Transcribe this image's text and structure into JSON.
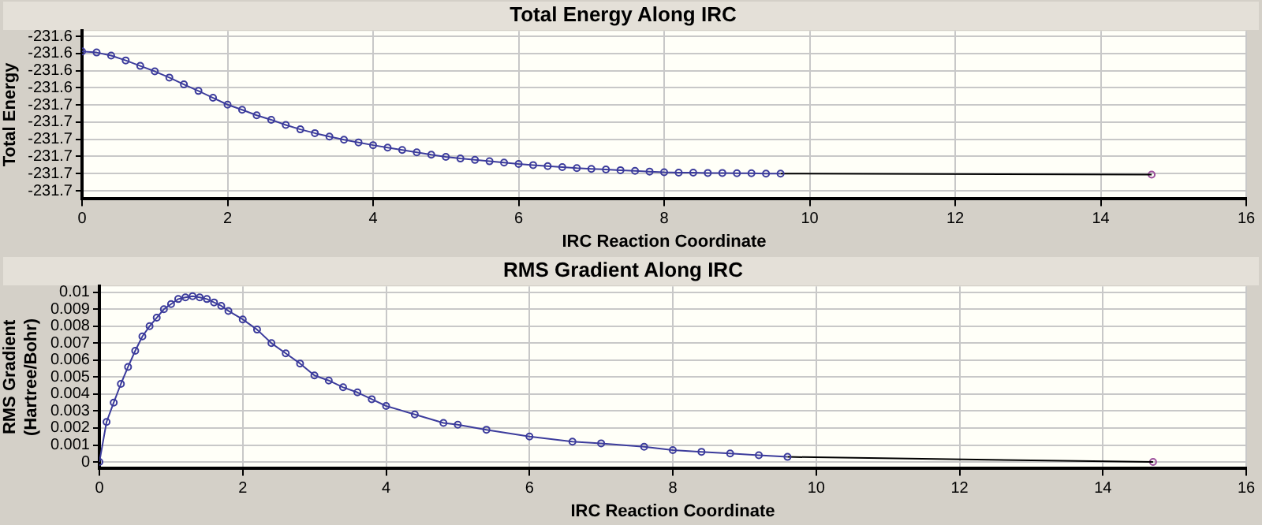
{
  "chart_data": [
    {
      "type": "line",
      "title": "Total Energy Along IRC",
      "xlabel": "IRC Reaction Coordinate",
      "ylabel": "Total Energy",
      "xlim": [
        0,
        16
      ],
      "xticks": [
        0,
        2,
        4,
        6,
        8,
        10,
        12,
        14,
        16
      ],
      "ylim": [
        -231.6772,
        -231.6284
      ],
      "yticks": [
        {
          "value": -231.63,
          "label": "-231.6"
        },
        {
          "value": -231.635,
          "label": "-231.6"
        },
        {
          "value": -231.64,
          "label": "-231.6"
        },
        {
          "value": -231.645,
          "label": "-231.6"
        },
        {
          "value": -231.65,
          "label": "-231.7"
        },
        {
          "value": -231.655,
          "label": "-231.7"
        },
        {
          "value": -231.66,
          "label": "-231.7"
        },
        {
          "value": -231.665,
          "label": "-231.7"
        },
        {
          "value": -231.67,
          "label": "-231.7"
        },
        {
          "value": -231.675,
          "label": "-231.7"
        }
      ],
      "grid": true,
      "legend": false,
      "marker": "circle",
      "series": [
        {
          "color": "#3c3c9c",
          "x": [
            0,
            0.2,
            0.4,
            0.6,
            0.8,
            1,
            1.2,
            1.4,
            1.6,
            1.8,
            2,
            2.2,
            2.4,
            2.6,
            2.8,
            3,
            3.2,
            3.4,
            3.6,
            3.8,
            4,
            4.2,
            4.4,
            4.6,
            4.8,
            5,
            5.2,
            5.4,
            5.6,
            5.8,
            6,
            6.2,
            6.4,
            6.6,
            6.8,
            7,
            7.2,
            7.4,
            7.6,
            7.8,
            8,
            8.2,
            8.4,
            8.6,
            8.8,
            9,
            9.2,
            9.4,
            9.6
          ],
          "values": [
            -231.6344,
            -231.6347,
            -231.6356,
            -231.637,
            -231.6386,
            -231.6402,
            -231.642,
            -231.644,
            -231.6459,
            -231.6479,
            -231.6499,
            -231.6514,
            -231.653,
            -231.6543,
            -231.6558,
            -231.6571,
            -231.6582,
            -231.6592,
            -231.6601,
            -231.6609,
            -231.6617,
            -231.6624,
            -231.6631,
            -231.6638,
            -231.6645,
            -231.6651,
            -231.6656,
            -231.666,
            -231.6664,
            -231.6668,
            -231.6672,
            -231.6675,
            -231.6678,
            -231.6681,
            -231.6684,
            -231.6686,
            -231.6688,
            -231.669,
            -231.6692,
            -231.6694,
            -231.6696,
            -231.6697,
            -231.6697,
            -231.6698,
            -231.6698,
            -231.6699,
            -231.6699,
            -231.67,
            -231.67
          ]
        },
        {
          "color": "#000000",
          "marker": "none",
          "x": [
            9.6,
            14.7
          ],
          "values": [
            -231.67,
            -231.6703
          ]
        },
        {
          "type": "scatter",
          "color": "#9c509c",
          "x": [
            14.7
          ],
          "values": [
            -231.6703
          ]
        }
      ]
    },
    {
      "type": "line",
      "title": "RMS Gradient Along IRC",
      "xlabel": "IRC Reaction Coordinate",
      "ylabel": "RMS Gradient\n(Hartree/Bohr)",
      "xlim": [
        0,
        16
      ],
      "xticks": [
        0,
        2,
        4,
        6,
        8,
        10,
        12,
        14,
        16
      ],
      "ylim": [
        -0.00035,
        0.01035
      ],
      "yticks": [
        0,
        0.001,
        0.002,
        0.003,
        0.004,
        0.005,
        0.006,
        0.007,
        0.008,
        0.009,
        0.01
      ],
      "grid": true,
      "legend": false,
      "marker": "circle",
      "series": [
        {
          "color": "#3c3c9c",
          "x": [
            0,
            0.1,
            0.2,
            0.3,
            0.4,
            0.5,
            0.6,
            0.7,
            0.8,
            0.9,
            1,
            1.1,
            1.2,
            1.3,
            1.4,
            1.5,
            1.6,
            1.7,
            1.8,
            2,
            2.2,
            2.4,
            2.6,
            2.8,
            3,
            3.2,
            3.4,
            3.6,
            3.8,
            4,
            4.4,
            4.8,
            5,
            5.4,
            6,
            6.6,
            7,
            7.6,
            8,
            8.4,
            8.8,
            9.2,
            9.6
          ],
          "values": [
            0,
            0.00236,
            0.0035,
            0.0046,
            0.0056,
            0.00655,
            0.0074,
            0.008,
            0.0085,
            0.009,
            0.0093,
            0.0096,
            0.0097,
            0.00977,
            0.0097,
            0.0096,
            0.0094,
            0.0092,
            0.0089,
            0.0084,
            0.0078,
            0.007,
            0.0064,
            0.0058,
            0.0051,
            0.0048,
            0.0044,
            0.0041,
            0.0037,
            0.0033,
            0.0028,
            0.0023,
            0.0022,
            0.0019,
            0.0015,
            0.0012,
            0.0011,
            0.0009,
            0.0007,
            0.0006,
            0.0005,
            0.0004,
            0.0003
          ]
        },
        {
          "color": "#000000",
          "marker": "none",
          "x": [
            9.6,
            14.7
          ],
          "values": [
            0.0003,
            0
          ]
        },
        {
          "type": "scatter",
          "color": "#9c509c",
          "x": [
            14.7
          ],
          "values": [
            0
          ]
        }
      ]
    }
  ]
}
